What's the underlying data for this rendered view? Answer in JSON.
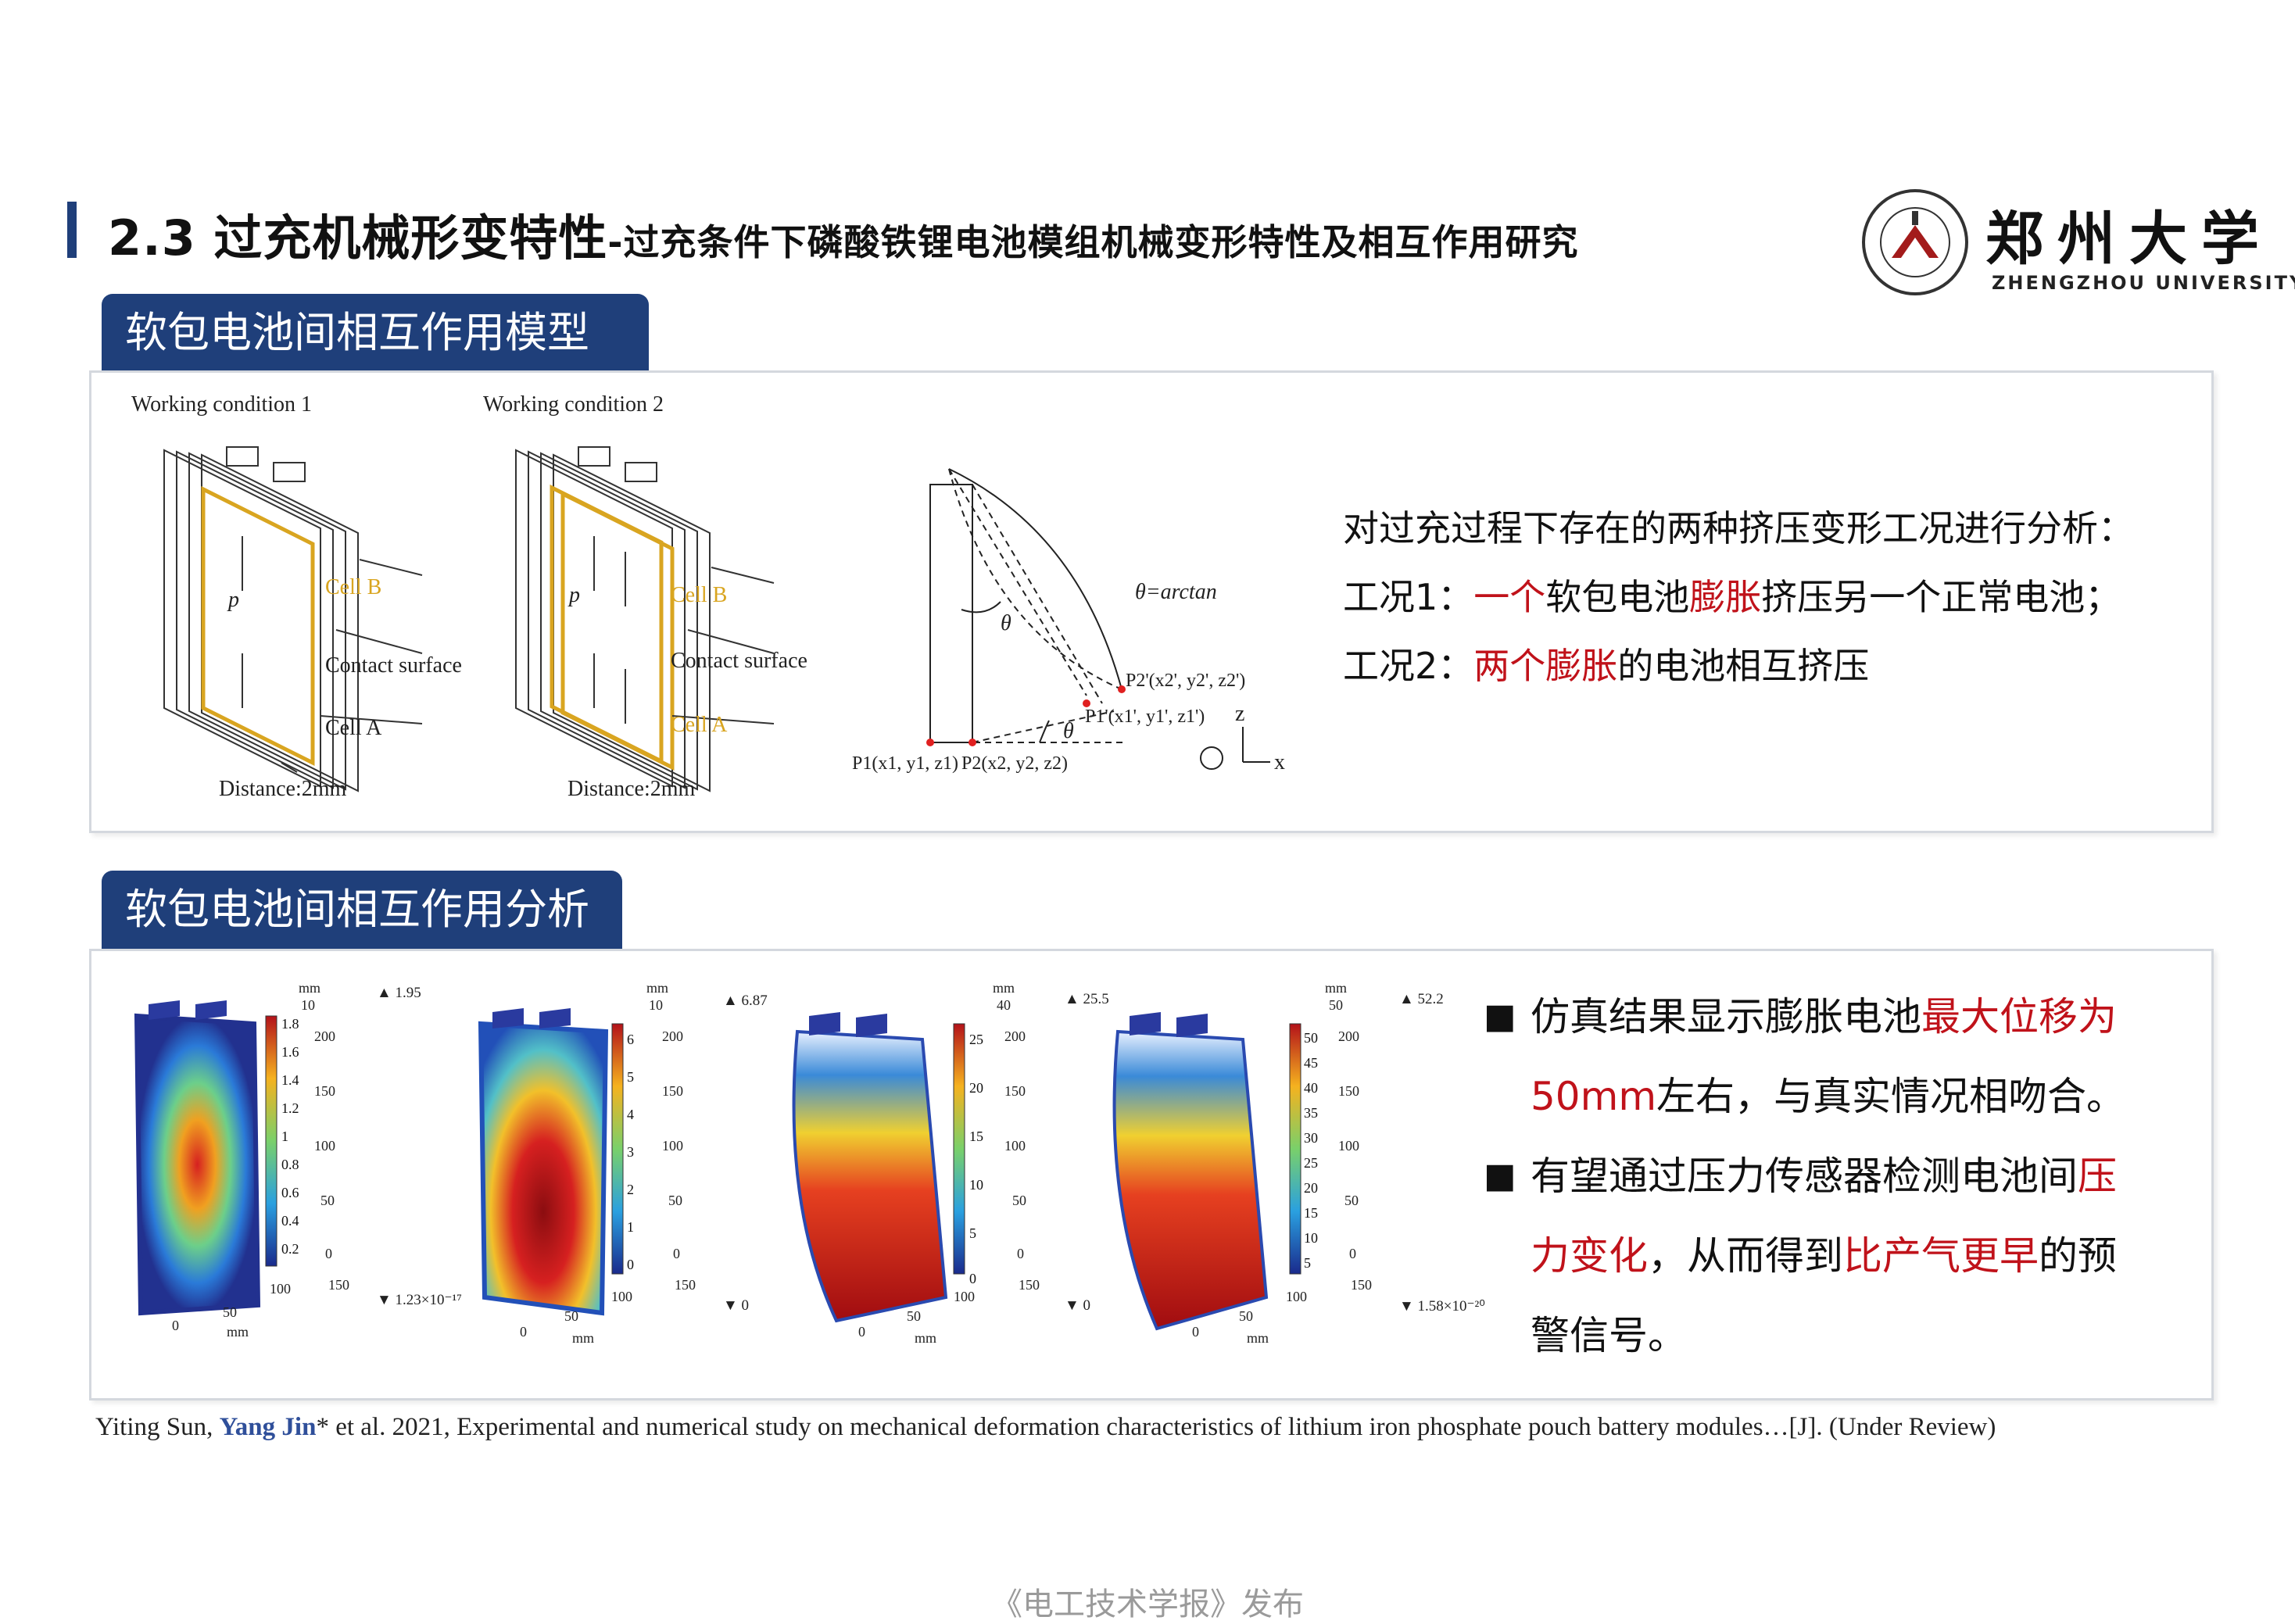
{
  "header": {
    "title": "2.3 过充机械形变特性",
    "subtitle": "-过充条件下磷酸铁锂电池模组机械变形特性及相互作用研究",
    "logo_cn": "郑州大学",
    "logo_en": "ZHENGZHOU UNIVERSITY",
    "seal_text": "ZHENGZHOU UNIVERSITY"
  },
  "section1": {
    "label": "软包电池间相互作用模型",
    "wc1": {
      "title": "Working condition 1",
      "cell_b": "Cell B",
      "contact": "Contact surface",
      "cell_a": "Cell A",
      "p": "p",
      "distance": "Distance:2mm"
    },
    "wc2": {
      "title": "Working condition 2",
      "cell_b": "Cell B",
      "contact": "Contact surface",
      "cell_a": "Cell A",
      "p": "p",
      "distance": "Distance:2mm"
    },
    "geom": {
      "theta": "θ",
      "formula": "θ=arctan",
      "p2p": "P2'(x2', y2', z2')",
      "p1p": "P1'(x1', y1', z1')",
      "p1": "P1(x1, y1, z1)",
      "p2": "P2(x2, y2, z2)",
      "z": "z",
      "x": "x"
    },
    "desc_line1": "对过充过程下存在的两种挤压变形工况进行分析：",
    "desc_line2_a": "工况1：",
    "desc_line2_b": "一个",
    "desc_line2_c": "软包电池",
    "desc_line2_d": "膨胀",
    "desc_line2_e": "挤压另一个正常电池；",
    "desc_line3_a": "工况2：",
    "desc_line3_b": "两个膨胀",
    "desc_line3_c": "的电池相互挤压"
  },
  "section2": {
    "label": "软包电池间相互作用分析",
    "plots": [
      {
        "max": "▲ 1.95",
        "min": "▼ 1.23×10⁻¹⁷",
        "ticks": [
          "1.8",
          "1.6",
          "1.4",
          "1.2",
          "1",
          "0.8",
          "0.6",
          "0.4",
          "0.2"
        ]
      },
      {
        "max": "▲ 6.87",
        "min": "▼ 0",
        "ticks": [
          "6",
          "5",
          "4",
          "3",
          "2",
          "1",
          "0"
        ]
      },
      {
        "max": "▲ 25.5",
        "min": "▼ 0",
        "ticks": [
          "25",
          "20",
          "15",
          "10",
          "5",
          "0"
        ]
      },
      {
        "max": "▲ 52.2",
        "min": "▼ 1.58×10⁻²⁰",
        "ticks": [
          "50",
          "45",
          "40",
          "35",
          "30",
          "25",
          "20",
          "15",
          "10",
          "5"
        ]
      }
    ],
    "axis_mm": "mm",
    "bullet1_a": "仿真结果显示膨胀电池",
    "bullet1_b": "最大位移为",
    "bullet1_c": "50mm",
    "bullet1_d": "左右，与真实情况相吻合。",
    "bullet2_a": "有望通过压力传感器检测电池间",
    "bullet2_b": "压",
    "bullet2_c": "力变化",
    "bullet2_d": "，从而得到",
    "bullet2_e": "比产气更早",
    "bullet2_f": "的预",
    "bullet2_g": "警信号。"
  },
  "reference": {
    "a": "Yiting Sun, ",
    "author": "Yang Jin",
    "b": "* et al. 2021, Experimental and numerical study on mechanical deformation characteristics of lithium iron phosphate pouch battery modules…[J]. (Under Review)"
  },
  "footer": "《电工技术学报》发布"
}
